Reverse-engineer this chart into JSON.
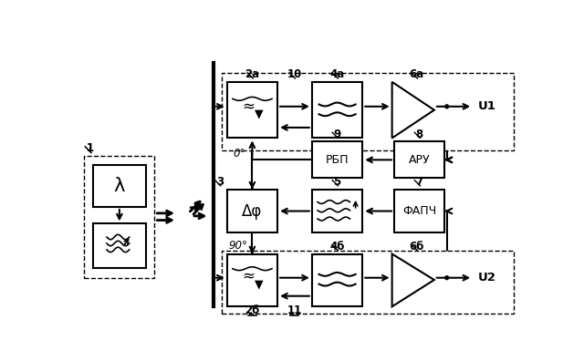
{
  "bg_color": "#ffffff",
  "lw": 1.5,
  "dlw": 1.0,
  "label_1": "1",
  "label_lambda": "λ",
  "label_2a": "2a",
  "label_2b": "2б",
  "label_3": "3",
  "label_4a": "4a",
  "label_4b": "4б",
  "label_5": "5",
  "label_6a": "6a",
  "label_6b": "6б",
  "label_7": "7",
  "label_8": "8",
  "label_9": "9",
  "label_10": "10",
  "label_11": "11",
  "label_0deg": "0°",
  "label_90deg": "90°",
  "label_u1": "U1",
  "label_u2": "U2",
  "label_rbp": "РБП",
  "label_aru": "АРУ",
  "label_fapch": "ФАПЧ",
  "label_dphi": "Δφ"
}
